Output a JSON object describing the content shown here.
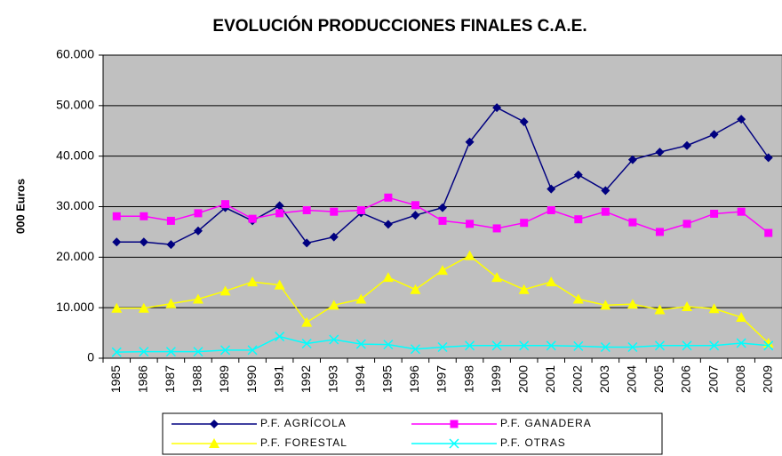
{
  "chart_data": {
    "type": "line",
    "title": "EVOLUCIÓN PRODUCCIONES FINALES C.A.E.",
    "y_label": "000 Euros",
    "categories": [
      "1985",
      "1986",
      "1987",
      "1988",
      "1989",
      "1990",
      "1991",
      "1992",
      "1993",
      "1994",
      "1995",
      "1996",
      "1997",
      "1998",
      "1999",
      "2000",
      "2001",
      "2002",
      "2003",
      "2004",
      "2005",
      "2006",
      "2007",
      "2008",
      "2009"
    ],
    "series": [
      {
        "name": "P.F. AGRÍCOLA",
        "color": "#000080",
        "marker": "diamond",
        "values": [
          23000,
          23000,
          22500,
          25200,
          29800,
          27200,
          30200,
          22800,
          24000,
          28800,
          26500,
          28300,
          29800,
          42800,
          49600,
          46800,
          33500,
          36300,
          33200,
          39300,
          40800,
          42100,
          44300,
          47300,
          39700
        ]
      },
      {
        "name": "P.F. GANADERA",
        "color": "#ff00ff",
        "marker": "square",
        "values": [
          28100,
          28100,
          27200,
          28700,
          30500,
          27600,
          28700,
          29300,
          29000,
          29300,
          31800,
          30300,
          27200,
          26600,
          25700,
          26800,
          29300,
          27500,
          29000,
          26900,
          25000,
          26600,
          28600,
          29000,
          24800
        ]
      },
      {
        "name": "P.F. FORESTAL",
        "color": "#ffff00",
        "marker": "triangle",
        "values": [
          9900,
          9900,
          10800,
          11700,
          13300,
          15100,
          14500,
          7100,
          10500,
          11700,
          16000,
          13600,
          17400,
          20300,
          16000,
          13600,
          15100,
          11700,
          10500,
          10700,
          9600,
          10200,
          9800,
          8100,
          3000
        ]
      },
      {
        "name": "P.F. OTRAS",
        "color": "#00ffff",
        "marker": "x",
        "values": [
          1200,
          1300,
          1300,
          1300,
          1600,
          1600,
          4300,
          2900,
          3700,
          2800,
          2700,
          1800,
          2200,
          2500,
          2500,
          2500,
          2500,
          2400,
          2200,
          2200,
          2500,
          2500,
          2500,
          3000,
          2500
        ]
      }
    ],
    "ylim": [
      0,
      60000
    ],
    "yticks": [
      0,
      {
        "value": 10000,
        "label": "10.000"
      },
      {
        "value": 20000,
        "label": "20.000"
      },
      {
        "value": 30000,
        "label": "30.000"
      },
      {
        "value": 40000,
        "label": "40.000"
      },
      {
        "value": 50000,
        "label": "50.000"
      },
      {
        "value": 60000,
        "label": "60.000"
      }
    ],
    "grid": true,
    "plot_background": "#c0c0c0",
    "legend": "bottom"
  }
}
